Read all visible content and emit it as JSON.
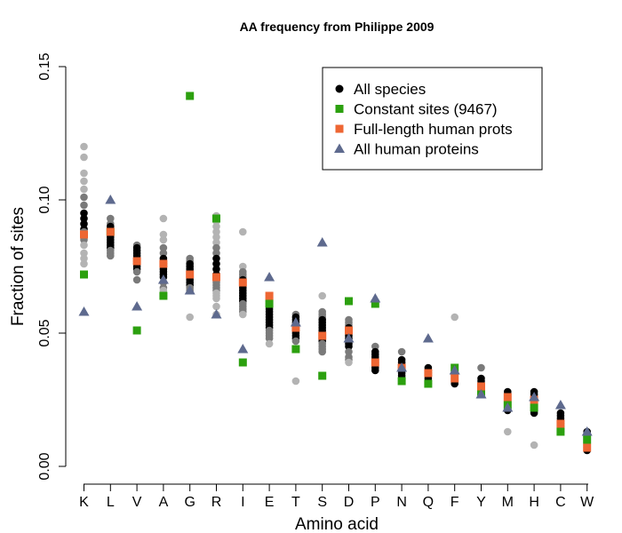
{
  "chart_data": {
    "type": "scatter",
    "title": "AA frequency from Philippe 2009",
    "xlabel": "Amino acid",
    "ylabel": "Fraction of sites",
    "categories": [
      "K",
      "L",
      "V",
      "A",
      "G",
      "R",
      "I",
      "E",
      "T",
      "S",
      "D",
      "P",
      "N",
      "Q",
      "F",
      "Y",
      "M",
      "H",
      "C",
      "W"
    ],
    "ylim": [
      0,
      0.15
    ],
    "yticks": [
      0.0,
      0.05,
      0.1,
      0.15
    ],
    "ytick_labels": [
      "0.00",
      "0.05",
      "0.10",
      "0.15"
    ],
    "grid": false,
    "legend_position": "top-right",
    "legend": [
      {
        "key": "all_species",
        "label": "All species",
        "marker": "circle",
        "color": "#000000"
      },
      {
        "key": "constant",
        "label": "Constant sites (9467)",
        "marker": "square",
        "color": "#2ca00f"
      },
      {
        "key": "fulllength",
        "label": "Full-length human prots",
        "marker": "square",
        "color": "#ee6633"
      },
      {
        "key": "allhuman",
        "label": "All human proteins",
        "marker": "triangle",
        "color": "#5e6a8e"
      }
    ],
    "colors": {
      "species_light": "#b3b3b3",
      "species_mid": "#7a7a7a",
      "species_dark": "#000000",
      "constant": "#2ca00f",
      "fulllength": "#ee6633",
      "allhuman": "#5e6a8e"
    },
    "all_species_spread": [
      [
        0.12,
        0.116,
        0.11,
        0.107,
        0.104,
        0.101,
        0.098,
        0.095,
        0.093,
        0.091,
        0.089,
        0.088,
        0.087,
        0.085,
        0.083,
        0.08,
        0.078,
        0.076
      ],
      [
        0.093,
        0.091,
        0.09,
        0.089,
        0.088,
        0.087,
        0.086,
        0.085,
        0.084,
        0.083,
        0.082,
        0.081,
        0.08,
        0.079
      ],
      [
        0.083,
        0.082,
        0.081,
        0.08,
        0.079,
        0.078,
        0.077,
        0.076,
        0.075,
        0.074,
        0.073,
        0.07
      ],
      [
        0.093,
        0.087,
        0.085,
        0.082,
        0.08,
        0.078,
        0.076,
        0.075,
        0.074,
        0.073,
        0.072,
        0.071,
        0.069,
        0.067,
        0.066,
        0.064
      ],
      [
        0.078,
        0.077,
        0.076,
        0.075,
        0.074,
        0.073,
        0.072,
        0.071,
        0.07,
        0.069,
        0.068,
        0.067,
        0.066,
        0.056
      ],
      [
        0.094,
        0.092,
        0.09,
        0.088,
        0.086,
        0.084,
        0.082,
        0.08,
        0.078,
        0.076,
        0.074,
        0.072,
        0.07,
        0.069,
        0.068,
        0.067,
        0.066,
        0.065,
        0.064,
        0.063,
        0.06,
        0.057
      ],
      [
        0.088,
        0.075,
        0.073,
        0.072,
        0.071,
        0.07,
        0.069,
        0.068,
        0.067,
        0.066,
        0.065,
        0.064,
        0.063,
        0.062,
        0.061,
        0.06,
        0.059,
        0.058,
        0.057
      ],
      [
        0.064,
        0.063,
        0.062,
        0.061,
        0.06,
        0.059,
        0.058,
        0.057,
        0.056,
        0.055,
        0.054,
        0.053,
        0.052,
        0.051,
        0.05,
        0.049,
        0.048,
        0.046
      ],
      [
        0.057,
        0.056,
        0.055,
        0.054,
        0.053,
        0.052,
        0.051,
        0.05,
        0.049,
        0.048,
        0.047,
        0.032
      ],
      [
        0.064,
        0.058,
        0.057,
        0.056,
        0.055,
        0.054,
        0.053,
        0.052,
        0.051,
        0.05,
        0.049,
        0.048,
        0.047,
        0.046,
        0.045,
        0.044,
        0.043
      ],
      [
        0.055,
        0.054,
        0.053,
        0.052,
        0.051,
        0.05,
        0.049,
        0.048,
        0.047,
        0.046,
        0.045,
        0.043,
        0.041,
        0.04,
        0.039
      ],
      [
        0.045,
        0.043,
        0.042,
        0.041,
        0.04,
        0.039,
        0.038,
        0.037,
        0.036
      ],
      [
        0.043,
        0.04,
        0.039,
        0.038,
        0.037,
        0.036,
        0.035,
        0.034,
        0.033
      ],
      [
        0.037,
        0.036,
        0.035,
        0.034,
        0.033,
        0.032,
        0.031
      ],
      [
        0.056,
        0.037,
        0.036,
        0.035,
        0.034,
        0.033,
        0.032,
        0.031
      ],
      [
        0.037,
        0.033,
        0.032,
        0.031,
        0.03,
        0.029,
        0.028,
        0.027
      ],
      [
        0.028,
        0.027,
        0.026,
        0.025,
        0.024,
        0.023,
        0.022,
        0.021,
        0.013
      ],
      [
        0.028,
        0.027,
        0.026,
        0.025,
        0.024,
        0.023,
        0.022,
        0.021,
        0.02,
        0.008
      ],
      [
        0.02,
        0.019,
        0.018,
        0.017,
        0.016,
        0.015,
        0.014,
        0.013
      ],
      [
        0.013,
        0.012,
        0.011,
        0.01,
        0.009,
        0.008,
        0.007,
        0.006
      ]
    ],
    "series": [
      {
        "key": "constant",
        "name": "Constant sites (9467)",
        "values": [
          0.072,
          0.088,
          0.051,
          0.064,
          0.139,
          0.093,
          0.039,
          0.061,
          0.044,
          0.034,
          0.062,
          0.061,
          0.032,
          0.031,
          0.037,
          0.028,
          0.023,
          0.022,
          0.013,
          0.01
        ]
      },
      {
        "key": "fulllength",
        "name": "Full-length human prots",
        "values": [
          0.087,
          0.088,
          0.077,
          0.076,
          0.072,
          0.071,
          0.069,
          0.064,
          0.052,
          0.049,
          0.051,
          0.039,
          0.037,
          0.035,
          0.033,
          0.03,
          0.026,
          0.025,
          0.016,
          0.007
        ]
      },
      {
        "key": "allhuman",
        "name": "All human proteins",
        "values": [
          0.058,
          0.1,
          0.06,
          0.07,
          0.066,
          0.057,
          0.044,
          0.071,
          0.054,
          0.084,
          0.048,
          0.063,
          0.037,
          0.048,
          0.036,
          0.027,
          0.022,
          0.026,
          0.023,
          0.013
        ]
      }
    ]
  }
}
